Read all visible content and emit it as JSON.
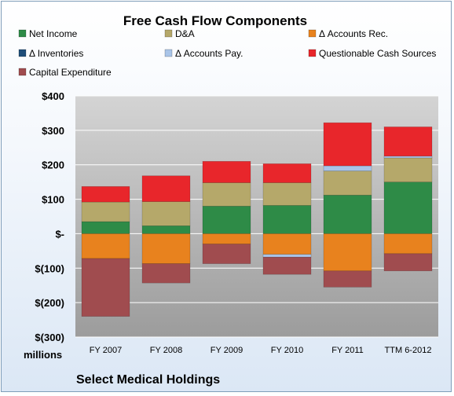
{
  "chart_data": {
    "type": "bar",
    "stacked": true,
    "title": "Free Cash Flow Components",
    "categories": [
      "FY 2007",
      "FY 2008",
      "FY 2009",
      "FY 2010",
      "FY 2011",
      "TTM 6-2012"
    ],
    "series": [
      {
        "name": "Net Income",
        "color": "#2e8b47",
        "values": [
          35,
          23,
          80,
          82,
          112,
          150
        ]
      },
      {
        "name": "D&A",
        "color": "#b5a86a",
        "values": [
          57,
          70,
          68,
          66,
          70,
          70
        ]
      },
      {
        "name": "Δ Accounts Rec.",
        "color": "#e8821e",
        "values": [
          -72,
          -87,
          -30,
          -60,
          -108,
          -58
        ]
      },
      {
        "name": "Δ Inventories",
        "color": "#1f4e79",
        "values": [
          0,
          0,
          0,
          0,
          0,
          0
        ]
      },
      {
        "name": "Δ Accounts Pay.",
        "color": "#a9c4e8",
        "values": [
          0,
          0,
          0,
          -8,
          15,
          5
        ]
      },
      {
        "name": "Questionable Cash Sources",
        "color": "#e8262b",
        "values": [
          45,
          75,
          62,
          55,
          125,
          85
        ]
      },
      {
        "name": "Capital Expenditure",
        "color": "#a04c4f",
        "values": [
          -168,
          -56,
          -57,
          -50,
          -47,
          -50
        ]
      }
    ],
    "ylabel": "",
    "yunit": "millions",
    "ylim": [
      -300,
      400
    ],
    "yticks": [
      -300,
      -200,
      -100,
      0,
      100,
      200,
      300,
      400
    ],
    "ytick_labels": [
      "$(300)",
      "$(200)",
      "$(100)",
      "$-",
      "$100",
      "$200",
      "$300",
      "$400"
    ],
    "grid": true,
    "legend_position": "top",
    "footer": "Select Medical Holdings"
  }
}
